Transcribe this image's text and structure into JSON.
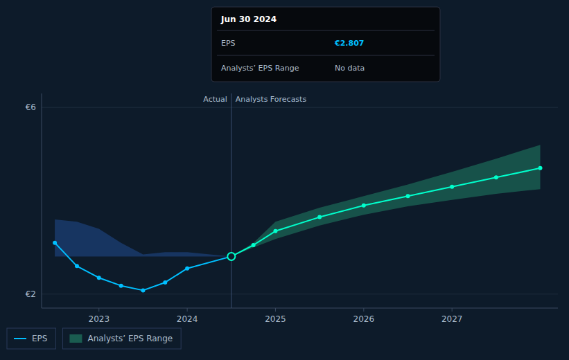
{
  "chart_data": {
    "type": "line",
    "xlim": [
      2022.35,
      2028.2
    ],
    "ylim": [
      1.7,
      6.3
    ],
    "xticks": [
      2023.0,
      2024.0,
      2025.0,
      2026.0,
      2027.0
    ],
    "yticks": [
      {
        "value": 2.0,
        "label": "€2"
      },
      {
        "value": 6.0,
        "label": "€6"
      }
    ],
    "grid": true,
    "legend": "bottom-left",
    "series": [
      {
        "name": "EPS",
        "type": "line",
        "color": "#00bfff",
        "marker": "circle",
        "x": [
          2022.5,
          2022.75,
          2023.0,
          2023.25,
          2023.5,
          2023.75,
          2024.0,
          2024.5
        ],
        "values": [
          3.1,
          2.6,
          2.35,
          2.18,
          2.08,
          2.25,
          2.55,
          2.807
        ]
      },
      {
        "name": "Analysts’ EPS Range",
        "type": "band",
        "color": "#1a5c50",
        "x": [
          2024.5,
          2024.75,
          2025.0,
          2025.5,
          2026.0,
          2026.5,
          2027.0,
          2027.5,
          2028.0
        ],
        "upper": [
          2.807,
          3.1,
          3.55,
          3.85,
          4.1,
          4.35,
          4.62,
          4.9,
          5.2
        ],
        "lower": [
          2.807,
          3.0,
          3.18,
          3.47,
          3.7,
          3.88,
          4.02,
          4.15,
          4.25
        ]
      },
      {
        "type": "band",
        "color": "#1a3a6b",
        "x": [
          2022.5,
          2022.75,
          2023.0,
          2023.25,
          2023.5,
          2023.75,
          2024.0,
          2024.5
        ],
        "upper": [
          3.6,
          3.55,
          3.4,
          3.1,
          2.85,
          2.9,
          2.9,
          2.807
        ],
        "lower": [
          2.807,
          2.807,
          2.807,
          2.807,
          2.807,
          2.807,
          2.807,
          2.807
        ]
      },
      {
        "type": "line",
        "color": "#00ffcc",
        "marker": "circle",
        "x": [
          2024.5,
          2024.75,
          2025.0,
          2025.5,
          2026.0,
          2026.5,
          2027.0,
          2027.5,
          2028.0
        ],
        "values": [
          2.807,
          3.05,
          3.35,
          3.65,
          3.9,
          4.1,
          4.3,
          4.5,
          4.7
        ]
      }
    ],
    "divider": {
      "x": 2024.5,
      "labels": [
        "Actual",
        "Analysts Forecasts"
      ]
    },
    "tooltip": {
      "x": 2024.5,
      "value": 2.807,
      "title": "Jun 30 2024",
      "rows": [
        {
          "label": "EPS",
          "value": "€2.807"
        },
        {
          "label": "Analysts’ EPS Range",
          "value": "No data"
        }
      ]
    }
  }
}
